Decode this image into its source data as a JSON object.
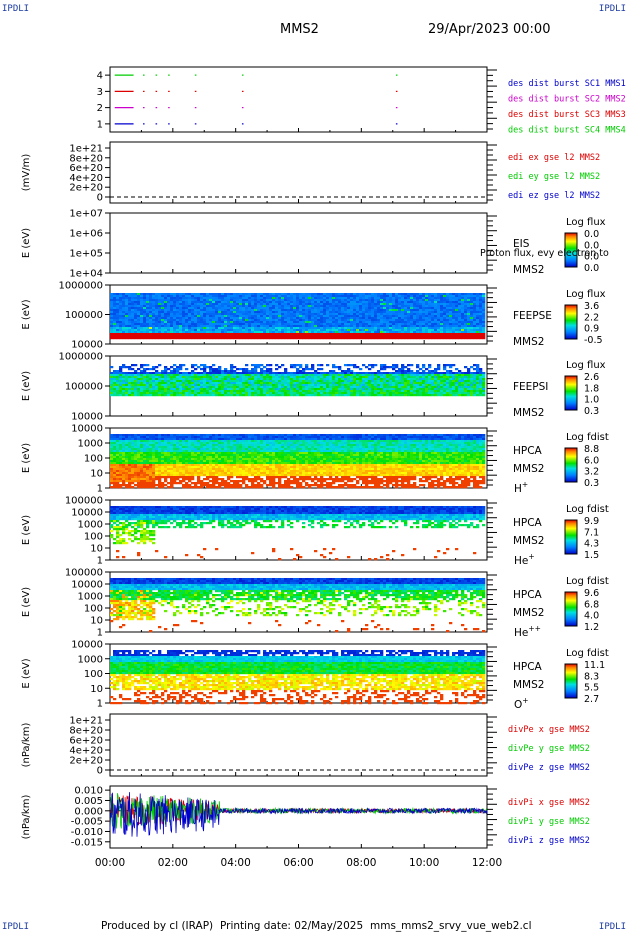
{
  "corner_mark": "IPDLI",
  "header": {
    "spacecraft": "MMS2",
    "datetime": "29/Apr/2023 00:00"
  },
  "footer": {
    "produced_by": "Produced by cl (IRAP)",
    "printing_date": "Printing date: 02/May/2025",
    "script_name": "mms_mms2_srvy_vue_web2.cl"
  },
  "colors": {
    "sc1": "#0000cc",
    "sc2": "#cc00cc",
    "sc3": "#dd0000",
    "sc4": "#00cc00",
    "x": "#dd0000",
    "y": "#00cc00",
    "z": "#0000cc"
  },
  "chart_data": [
    {
      "type": "line",
      "panel": "burst",
      "xlim": [
        "00:00",
        "12:00"
      ],
      "ylim": [
        0.5,
        4.5
      ],
      "y_ticks": [
        "1",
        "2",
        "3",
        "4"
      ],
      "series": [
        {
          "name": "des dist burst SC1 MMS1",
          "level": 1,
          "intervals_h": [
            [
              0.15,
              0.75
            ],
            [
              1.05,
              1.1
            ],
            [
              1.45,
              1.5
            ],
            [
              1.85,
              1.9
            ],
            [
              2.7,
              2.75
            ],
            [
              4.2,
              4.25
            ],
            [
              9.1,
              9.15
            ]
          ]
        },
        {
          "name": "des dist burst SC2 MMS2",
          "level": 2,
          "intervals_h": [
            [
              0.15,
              0.75
            ],
            [
              1.05,
              1.1
            ],
            [
              1.45,
              1.5
            ],
            [
              1.85,
              1.9
            ],
            [
              2.7,
              2.75
            ],
            [
              4.2,
              4.25
            ],
            [
              9.1,
              9.15
            ]
          ]
        },
        {
          "name": "des dist burst SC3 MMS3",
          "level": 3,
          "intervals_h": [
            [
              0.15,
              0.75
            ],
            [
              1.05,
              1.1
            ],
            [
              1.45,
              1.5
            ],
            [
              1.85,
              1.9
            ],
            [
              2.7,
              2.75
            ],
            [
              4.2,
              4.25
            ],
            [
              9.1,
              9.15
            ]
          ]
        },
        {
          "name": "des dist burst SC4 MMS4",
          "level": 4,
          "intervals_h": [
            [
              0.15,
              0.75
            ],
            [
              1.05,
              1.1
            ],
            [
              1.45,
              1.5
            ],
            [
              1.85,
              1.9
            ],
            [
              2.7,
              2.75
            ],
            [
              4.2,
              4.25
            ],
            [
              9.1,
              9.15
            ]
          ]
        }
      ]
    },
    {
      "type": "line",
      "panel": "edi",
      "ylabel": "(mV/m)",
      "y_ticks": [
        "0",
        "2e+20",
        "4e+20",
        "6e+20",
        "8e+20",
        "1e+21"
      ],
      "series": [
        {
          "name": "edi ex gse l2 MMS2"
        },
        {
          "name": "edi ey gse l2 MMS2"
        },
        {
          "name": "edi ez gse l2 MMS2"
        }
      ],
      "note": "no data, dashed zero line only"
    },
    {
      "type": "heatmap",
      "panel": "eis",
      "ylabel": "E (eV)",
      "y_ticks": [
        "1e+04",
        "1e+05",
        "1e+06",
        "1e+07"
      ],
      "label": "EIS",
      "sublabel": "MMS2",
      "overlay_text": "Proton flux, evy electron to",
      "colorbar": {
        "title": "Log flux",
        "ticks": [
          "0.0",
          "0.0",
          "0.0",
          "0.0"
        ]
      }
    },
    {
      "type": "heatmap",
      "panel": "feepse",
      "ylabel": "E (eV)",
      "y_ticks": [
        "10000",
        "100000",
        "1000000"
      ],
      "label": "FEEPSE",
      "sublabel": "MMS2",
      "colorbar": {
        "title": "Log flux",
        "ticks": [
          "3.6",
          "2.2",
          "0.9",
          "-0.5"
        ]
      }
    },
    {
      "type": "heatmap",
      "panel": "feepsi",
      "ylabel": "E (eV)",
      "y_ticks": [
        "10000",
        "100000",
        "1000000"
      ],
      "label": "FEEPSI",
      "sublabel": "MMS2",
      "colorbar": {
        "title": "Log flux",
        "ticks": [
          "2.6",
          "1.8",
          "1.0",
          "0.3"
        ]
      }
    },
    {
      "type": "heatmap",
      "panel": "hpca_h",
      "ylabel": "E (eV)",
      "y_ticks": [
        "1",
        "10",
        "100",
        "1000",
        "10000"
      ],
      "label": "HPCA",
      "sublabel": "MMS2",
      "species": "H",
      "charge": "+",
      "colorbar": {
        "title": "Log fdist",
        "ticks": [
          "8.8",
          "6.0",
          "3.2",
          "0.3"
        ]
      }
    },
    {
      "type": "heatmap",
      "panel": "hpca_he",
      "ylabel": "E (eV)",
      "y_ticks": [
        "1",
        "10",
        "100",
        "1000",
        "10000",
        "100000"
      ],
      "label": "HPCA",
      "sublabel": "MMS2",
      "species": "He",
      "charge": "+",
      "colorbar": {
        "title": "Log fdist",
        "ticks": [
          "9.9",
          "7.1",
          "4.3",
          "1.5"
        ]
      }
    },
    {
      "type": "heatmap",
      "panel": "hpca_hepp",
      "ylabel": "E (eV)",
      "y_ticks": [
        "1",
        "10",
        "100",
        "1000",
        "10000",
        "100000"
      ],
      "label": "HPCA",
      "sublabel": "MMS2",
      "species": "He",
      "charge": "++",
      "colorbar": {
        "title": "Log fdist",
        "ticks": [
          "9.6",
          "6.8",
          "4.0",
          "1.2"
        ]
      }
    },
    {
      "type": "heatmap",
      "panel": "hpca_o",
      "ylabel": "E (eV)",
      "y_ticks": [
        "1",
        "10",
        "100",
        "1000",
        "10000"
      ],
      "label": "HPCA",
      "sublabel": "MMS2",
      "species": "O",
      "charge": "+",
      "colorbar": {
        "title": "Log fdist",
        "ticks": [
          "11.1",
          "8.3",
          "5.5",
          "2.7"
        ]
      }
    },
    {
      "type": "line",
      "panel": "divpe",
      "ylabel": "(nPa/km)",
      "y_ticks": [
        "0",
        "2e+20",
        "4e+20",
        "6e+20",
        "8e+20",
        "1e+21"
      ],
      "series": [
        {
          "name": "divPe x gse MMS2"
        },
        {
          "name": "divPe y gse MMS2"
        },
        {
          "name": "divPe z gse MMS2"
        }
      ],
      "note": "no data, dashed zero line only"
    },
    {
      "type": "line",
      "panel": "divpi",
      "ylabel": "(nPa/km)",
      "ylim": [
        -0.018,
        0.012
      ],
      "y_ticks": [
        "-0.015",
        "-0.010",
        "-0.005",
        "0.000",
        "0.005",
        "0.010"
      ],
      "series": [
        {
          "name": "divPi x gse MMS2",
          "early_amplitude": 0.008,
          "late_amplitude": 0.001
        },
        {
          "name": "divPi y gse MMS2",
          "early_amplitude": 0.009,
          "late_amplitude": 0.0012
        },
        {
          "name": "divPi z gse MMS2",
          "early_amplitude": 0.012,
          "late_amplitude": 0.0012
        }
      ]
    }
  ],
  "x_axis": {
    "ticks": [
      "00:00",
      "02:00",
      "04:00",
      "06:00",
      "08:00",
      "10:00",
      "12:00"
    ]
  }
}
